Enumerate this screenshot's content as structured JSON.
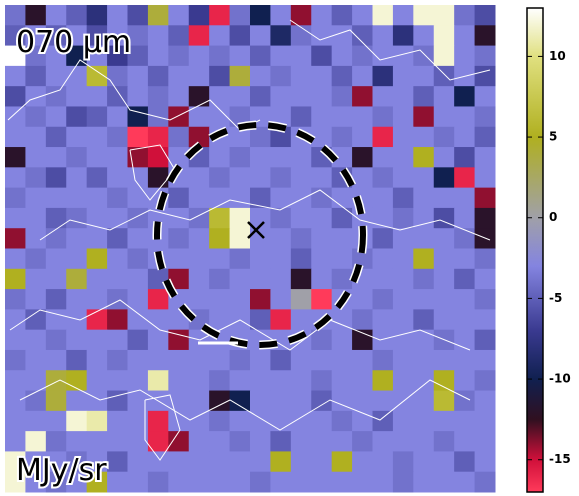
{
  "chart_data": {
    "type": "heatmap",
    "title": "070 μm",
    "colorbar_label": "MJy/sr",
    "zlim": [
      -17,
      13
    ],
    "colorbar_ticks": [
      10,
      5,
      0,
      -5,
      -10,
      -15
    ],
    "colormap": [
      {
        "value": -17,
        "color": "#ff3a5a"
      },
      {
        "value": -15,
        "color": "#d0103a"
      },
      {
        "value": -12.5,
        "color": "#301020"
      },
      {
        "value": -10,
        "color": "#102050"
      },
      {
        "value": -7,
        "color": "#3a3a90"
      },
      {
        "value": -3,
        "color": "#8484e0"
      },
      {
        "value": 0,
        "color": "#a0a0a8"
      },
      {
        "value": 5,
        "color": "#b0b020"
      },
      {
        "value": 10,
        "color": "#e0e080"
      },
      {
        "value": 13,
        "color": "#ffffff"
      }
    ],
    "z": [
      [
        -4,
        -12,
        -3,
        -5,
        -8,
        -3,
        -6,
        4,
        -3,
        -7,
        -16,
        -4,
        -10,
        -3,
        -14,
        -3,
        -5,
        -3,
        12,
        -3,
        12,
        12,
        -4,
        -6
      ],
      [
        -5,
        -3,
        -5,
        -3,
        -6,
        -3,
        -4,
        -3,
        -5,
        -16,
        -3,
        -6,
        -3,
        -9,
        -4,
        -3,
        -3,
        -5,
        -3,
        -8,
        -3,
        12,
        -3,
        -12
      ],
      [
        13,
        -4,
        -3,
        -10,
        -3,
        -7,
        -5,
        -3,
        -4,
        -3,
        -4,
        -3,
        -5,
        -3,
        -3,
        -6,
        -3,
        -4,
        -3,
        -3,
        -4,
        12,
        -3,
        -4
      ],
      [
        -3,
        -5,
        -3,
        -3,
        6,
        -4,
        -3,
        -5,
        -3,
        -3,
        -6,
        4,
        -3,
        -4,
        -3,
        -3,
        -5,
        -3,
        -8,
        -3,
        -3,
        -5,
        -3,
        -6
      ],
      [
        -6,
        -3,
        -4,
        -3,
        -3,
        -5,
        -3,
        -4,
        -3,
        -12,
        -3,
        -3,
        -5,
        -3,
        -3,
        -3,
        -4,
        -14,
        -3,
        -3,
        -5,
        -3,
        -10,
        -3
      ],
      [
        -3,
        -4,
        -3,
        -6,
        -5,
        -3,
        -10,
        -4,
        -14,
        -3,
        -3,
        -4,
        -3,
        -3,
        -5,
        -3,
        -3,
        -3,
        -4,
        -3,
        -14,
        -3,
        -3,
        -4
      ],
      [
        -3,
        -3,
        -5,
        -3,
        -3,
        -4,
        -17,
        -16,
        -4,
        -14,
        -3,
        -3,
        -4,
        -6,
        -3,
        -3,
        -4,
        -3,
        -16,
        -3,
        -3,
        -4,
        -3,
        -5
      ],
      [
        -12,
        -3,
        -3,
        -4,
        -3,
        -3,
        -14,
        -15,
        -3,
        -5,
        -3,
        -4,
        -3,
        -3,
        -3,
        -5,
        -3,
        -12,
        -3,
        -3,
        5,
        -3,
        -6,
        -3
      ],
      [
        -3,
        -4,
        -6,
        -3,
        -5,
        -3,
        -3,
        -12,
        -3,
        -3,
        -4,
        -3,
        -3,
        -4,
        -3,
        -3,
        -5,
        -3,
        -4,
        -3,
        -3,
        -10,
        -16,
        -3
      ],
      [
        -4,
        -3,
        -3,
        -3,
        -3,
        -4,
        -3,
        -3,
        -5,
        -3,
        -3,
        -3,
        -5,
        -3,
        -3,
        -4,
        -3,
        -3,
        -3,
        -5,
        -3,
        -3,
        -3,
        -14
      ],
      [
        -3,
        -3,
        -5,
        -4,
        -3,
        -3,
        -4,
        -3,
        -3,
        -4,
        6,
        12,
        -3,
        -4,
        -3,
        -3,
        -5,
        -3,
        -3,
        -4,
        -3,
        -6,
        -3,
        -12
      ],
      [
        -14,
        -3,
        -4,
        -3,
        -3,
        -5,
        -3,
        -3,
        -4,
        -3,
        5,
        12,
        -3,
        -3,
        -4,
        -3,
        -3,
        -3,
        -5,
        -3,
        -3,
        -3,
        -4,
        -12
      ],
      [
        -3,
        -4,
        -3,
        -3,
        5,
        -3,
        -4,
        -3,
        -3,
        -3,
        -3,
        -4,
        -3,
        -3,
        -5,
        -3,
        -3,
        -4,
        -3,
        -3,
        5,
        -3,
        -3,
        -4
      ],
      [
        5,
        -3,
        -3,
        4,
        -3,
        -3,
        -3,
        -5,
        -14,
        -3,
        -4,
        -3,
        -3,
        -3,
        -12,
        -3,
        -4,
        -3,
        -3,
        -3,
        -4,
        -3,
        -5,
        -3
      ],
      [
        -4,
        -3,
        -5,
        -3,
        -3,
        -4,
        -3,
        -16,
        -3,
        -3,
        -3,
        -3,
        -14,
        -3,
        0,
        -17,
        -3,
        -3,
        -4,
        -3,
        -3,
        -3,
        -3,
        -4
      ],
      [
        -3,
        -5,
        -3,
        -3,
        -16,
        -14,
        -3,
        -3,
        -3,
        -4,
        -3,
        -3,
        -5,
        -16,
        -3,
        -3,
        -3,
        -4,
        -3,
        -3,
        -5,
        -3,
        -3,
        -3
      ],
      [
        -3,
        -3,
        -4,
        -3,
        -3,
        -3,
        -5,
        -3,
        -14,
        -3,
        -3,
        -3,
        -3,
        -3,
        -3,
        -4,
        -3,
        -12,
        -3,
        -3,
        -3,
        -4,
        -3,
        -5
      ],
      [
        -4,
        -3,
        -3,
        -5,
        -3,
        -4,
        -3,
        -3,
        -3,
        -3,
        -3,
        -4,
        -3,
        -5,
        -3,
        -3,
        -3,
        -3,
        -4,
        -3,
        -3,
        -3,
        -3,
        -3
      ],
      [
        -3,
        -3,
        4,
        5,
        -3,
        -3,
        -3,
        11,
        -3,
        -3,
        -4,
        -3,
        -3,
        -3,
        -3,
        -4,
        -3,
        -3,
        5,
        -3,
        -3,
        5,
        -3,
        -4
      ],
      [
        -3,
        -4,
        4,
        -3,
        -3,
        -5,
        -3,
        -3,
        -3,
        -3,
        -12,
        -10,
        -3,
        -3,
        -3,
        -5,
        -3,
        -3,
        -3,
        -3,
        -3,
        6,
        -4,
        -3
      ],
      [
        -3,
        -3,
        -3,
        12,
        11,
        -3,
        -3,
        -16,
        -3,
        -3,
        -4,
        -3,
        -3,
        -3,
        -3,
        -3,
        -4,
        -3,
        -5,
        -3,
        -3,
        -3,
        -3,
        -3
      ],
      [
        -3,
        12,
        -4,
        -3,
        -3,
        -3,
        -3,
        -16,
        -14,
        -3,
        -3,
        -4,
        -3,
        -5,
        -3,
        -3,
        -3,
        -4,
        -3,
        -3,
        -3,
        -4,
        -3,
        -3
      ],
      [
        12,
        -3,
        -3,
        -4,
        -3,
        -5,
        -3,
        -3,
        -3,
        -3,
        -3,
        -3,
        -3,
        5,
        -3,
        -3,
        5,
        -3,
        -3,
        -4,
        -3,
        -3,
        -5,
        -3
      ],
      [
        12,
        -3,
        -4,
        -3,
        5,
        -3,
        -3,
        -4,
        -3,
        -3,
        -3,
        -3,
        -4,
        -3,
        -3,
        -3,
        -3,
        -3,
        -3,
        -4,
        -3,
        -3,
        -3,
        -4
      ]
    ]
  }
}
